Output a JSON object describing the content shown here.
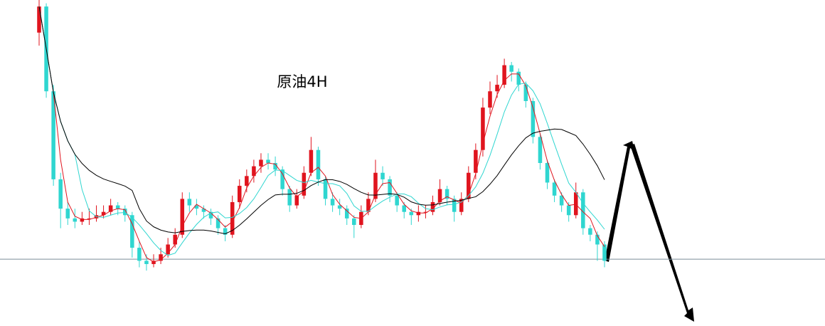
{
  "chart_data": {
    "type": "candlestick",
    "title": "原油4H",
    "ylim": [
      0,
      100
    ],
    "level": 20.5,
    "up_color": "#e0141e",
    "down_color": "#2fd6d0",
    "candles": [
      [
        90,
        100,
        86,
        98
      ],
      [
        98,
        99,
        70,
        72
      ],
      [
        72,
        74,
        43,
        45
      ],
      [
        45,
        47,
        30,
        36
      ],
      [
        36,
        38,
        31,
        33
      ],
      [
        33,
        36,
        30,
        32
      ],
      [
        32,
        35,
        31,
        33
      ],
      [
        33,
        36,
        31,
        33
      ],
      [
        33,
        37,
        32,
        34
      ],
      [
        34,
        37,
        33,
        35
      ],
      [
        35,
        39,
        34,
        37
      ],
      [
        37,
        38,
        34,
        36
      ],
      [
        36,
        37,
        32,
        34
      ],
      [
        34,
        35,
        21,
        24
      ],
      [
        24,
        26,
        18,
        20
      ],
      [
        20,
        22,
        17,
        19
      ],
      [
        19,
        22,
        18,
        20
      ],
      [
        20,
        24,
        19,
        22
      ],
      [
        22,
        27,
        21,
        25
      ],
      [
        25,
        30,
        24,
        28
      ],
      [
        28,
        41,
        27,
        39
      ],
      [
        39,
        41,
        35,
        37
      ],
      [
        37,
        39,
        34,
        36
      ],
      [
        36,
        37,
        33,
        35
      ],
      [
        35,
        36,
        31,
        33
      ],
      [
        33,
        34,
        28,
        30
      ],
      [
        30,
        31,
        26,
        28
      ],
      [
        28,
        40,
        27,
        38
      ],
      [
        38,
        45,
        36,
        43
      ],
      [
        43,
        48,
        41,
        46
      ],
      [
        46,
        51,
        44,
        49
      ],
      [
        49,
        53,
        47,
        51
      ],
      [
        51,
        53,
        48,
        50
      ],
      [
        50,
        52,
        46,
        48
      ],
      [
        48,
        49,
        40,
        42
      ],
      [
        42,
        43,
        35,
        37
      ],
      [
        37,
        42,
        36,
        40
      ],
      [
        40,
        49,
        39,
        47
      ],
      [
        47,
        58,
        46,
        54
      ],
      [
        54,
        55,
        43,
        45
      ],
      [
        45,
        46,
        37,
        39
      ],
      [
        39,
        41,
        35,
        37
      ],
      [
        37,
        39,
        34,
        36
      ],
      [
        36,
        37,
        31,
        33
      ],
      [
        33,
        34,
        27,
        31
      ],
      [
        31,
        37,
        30,
        35
      ],
      [
        35,
        41,
        34,
        39
      ],
      [
        39,
        51,
        38,
        47
      ],
      [
        47,
        49,
        43,
        45
      ],
      [
        45,
        46,
        38,
        40
      ],
      [
        40,
        41,
        35,
        37
      ],
      [
        37,
        38,
        33,
        35
      ],
      [
        35,
        36,
        31,
        34
      ],
      [
        34,
        37,
        32,
        35
      ],
      [
        35,
        37,
        33,
        35
      ],
      [
        35,
        40,
        34,
        38
      ],
      [
        38,
        45,
        37,
        42
      ],
      [
        42,
        43,
        37,
        39
      ],
      [
        39,
        40,
        32,
        35
      ],
      [
        35,
        41,
        34,
        39
      ],
      [
        39,
        49,
        38,
        47
      ],
      [
        47,
        56,
        45,
        54
      ],
      [
        54,
        70,
        52,
        67
      ],
      [
        67,
        75,
        65,
        72
      ],
      [
        72,
        77,
        70,
        74
      ],
      [
        74,
        82,
        73,
        80
      ],
      [
        80,
        81,
        75,
        78
      ],
      [
        78,
        79,
        72,
        74
      ],
      [
        74,
        75,
        67,
        69
      ],
      [
        69,
        70,
        56,
        58
      ],
      [
        58,
        59,
        48,
        50
      ],
      [
        50,
        51,
        42,
        44
      ],
      [
        44,
        45,
        38,
        40
      ],
      [
        40,
        41,
        35,
        37
      ],
      [
        37,
        38,
        32,
        34
      ],
      [
        34,
        44,
        33,
        41
      ],
      [
        41,
        42,
        28,
        30
      ],
      [
        30,
        31,
        26,
        28
      ],
      [
        28,
        29,
        20,
        25
      ],
      [
        25,
        26,
        18,
        20
      ]
    ]
  }
}
